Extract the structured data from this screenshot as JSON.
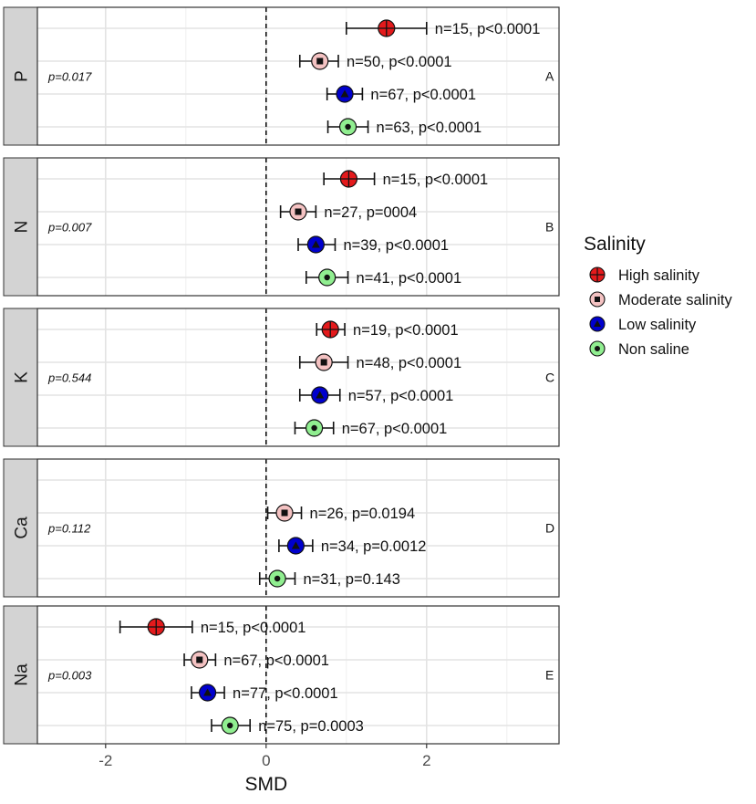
{
  "chart_data": {
    "type": "scatter",
    "subtype": "forest-plot-faceted",
    "xlabel": "SMD",
    "x_ticks": [
      "-2",
      "0",
      "2"
    ],
    "x_tick_values": [
      -2,
      0,
      2
    ],
    "xlim": [
      -2.85,
      3.65
    ],
    "reference_line": 0,
    "grid": true,
    "legend": {
      "title": "Salinity",
      "placement": "right",
      "entries": [
        {
          "key": "high",
          "label": "High salinity"
        },
        {
          "key": "moderate",
          "label": "Moderate salinity"
        },
        {
          "key": "low",
          "label": "Low salinity"
        },
        {
          "key": "non",
          "label": "Non saline"
        }
      ]
    },
    "series_style": {
      "high": {
        "fill": "#e41a1c",
        "glyph": "plus"
      },
      "moderate": {
        "fill": "#f4c2c2",
        "glyph": "square"
      },
      "low": {
        "fill": "#0000cd",
        "glyph": "triangle"
      },
      "non": {
        "fill": "#90ee90",
        "glyph": "dot"
      }
    },
    "facets": [
      {
        "strip": "P",
        "tag": "A",
        "pvalue": "p=0.017",
        "rows": [
          {
            "group": "high",
            "smd": 1.5,
            "lo": 1.0,
            "hi": 2.0,
            "label": "n=15,  p<0.0001"
          },
          {
            "group": "moderate",
            "smd": 0.67,
            "lo": 0.42,
            "hi": 0.9,
            "label": "n=50, p<0.0001"
          },
          {
            "group": "low",
            "smd": 0.98,
            "lo": 0.76,
            "hi": 1.2,
            "label": "n=67, p<0.0001"
          },
          {
            "group": "non",
            "smd": 1.02,
            "lo": 0.77,
            "hi": 1.27,
            "label": "n=63, p<0.0001"
          }
        ]
      },
      {
        "strip": "N",
        "tag": "B",
        "pvalue": "p=0.007",
        "rows": [
          {
            "group": "high",
            "smd": 1.03,
            "lo": 0.72,
            "hi": 1.35,
            "label": "n=15, p<0.0001"
          },
          {
            "group": "moderate",
            "smd": 0.4,
            "lo": 0.18,
            "hi": 0.62,
            "label": "n=27, p=0004"
          },
          {
            "group": "low",
            "smd": 0.62,
            "lo": 0.4,
            "hi": 0.86,
            "label": "n=39, p<0.0001"
          },
          {
            "group": "non",
            "smd": 0.76,
            "lo": 0.5,
            "hi": 1.02,
            "label": "n=41,  p<0.0001"
          }
        ]
      },
      {
        "strip": "K",
        "tag": "C",
        "pvalue": "p=0.544",
        "rows": [
          {
            "group": "high",
            "smd": 0.8,
            "lo": 0.63,
            "hi": 0.98,
            "label": "n=19, p<0.0001"
          },
          {
            "group": "moderate",
            "smd": 0.72,
            "lo": 0.42,
            "hi": 1.02,
            "label": "n=48, p<0.0001"
          },
          {
            "group": "low",
            "smd": 0.67,
            "lo": 0.42,
            "hi": 0.92,
            "label": "n=57, p<0.0001"
          },
          {
            "group": "non",
            "smd": 0.6,
            "lo": 0.36,
            "hi": 0.84,
            "label": "n=67, p<0.0001"
          }
        ]
      },
      {
        "strip": "Ca",
        "tag": "D",
        "pvalue": "p=0.112",
        "rows": [
          {
            "group": "high",
            "smd": null,
            "lo": null,
            "hi": null,
            "label": ""
          },
          {
            "group": "moderate",
            "smd": 0.23,
            "lo": 0.02,
            "hi": 0.44,
            "label": "n=26, p=0.0194"
          },
          {
            "group": "low",
            "smd": 0.37,
            "lo": 0.16,
            "hi": 0.58,
            "label": "n=34, p=0.0012"
          },
          {
            "group": "non",
            "smd": 0.14,
            "lo": -0.08,
            "hi": 0.36,
            "label": "n=31, p=0.143"
          }
        ]
      },
      {
        "strip": "Na",
        "tag": "E",
        "pvalue": "p=0.003",
        "rows": [
          {
            "group": "high",
            "smd": -1.37,
            "lo": -1.82,
            "hi": -0.92,
            "label": "n=15, p<0.0001"
          },
          {
            "group": "moderate",
            "smd": -0.83,
            "lo": -1.02,
            "hi": -0.63,
            "label": "n=67, p<0.0001"
          },
          {
            "group": "low",
            "smd": -0.73,
            "lo": -0.93,
            "hi": -0.52,
            "label": "n=77, p<0.0001"
          },
          {
            "group": "non",
            "smd": -0.45,
            "lo": -0.68,
            "hi": -0.2,
            "label": "n=75, p=0.0003"
          }
        ]
      }
    ]
  }
}
